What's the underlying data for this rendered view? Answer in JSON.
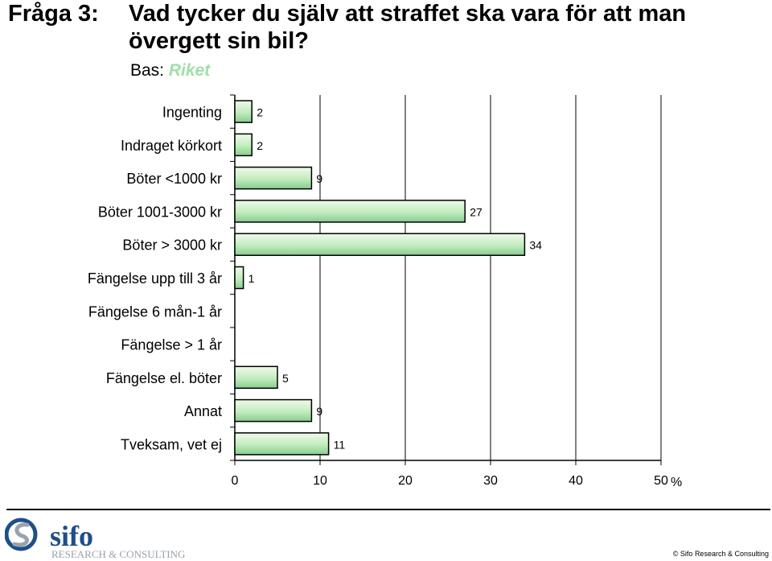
{
  "header": {
    "question_number": "Fråga 3:",
    "question_text": "Vad tycker du själv att straffet ska vara för att man övergett sin bil?",
    "base_label": "Bas:",
    "base_value": "Riket"
  },
  "chart_data": {
    "type": "bar",
    "orientation": "horizontal",
    "categories": [
      "Ingenting",
      "Indraget körkort",
      "Böter <1000 kr",
      "Böter 1001-3000 kr",
      "Böter > 3000 kr",
      "Fängelse upp till 3 år",
      "Fängelse 6 mån-1 år",
      "Fängelse > 1 år",
      "Fängelse el. böter",
      "Annat",
      "Tveksam, vet ej"
    ],
    "values": [
      2,
      2,
      9,
      27,
      34,
      1,
      null,
      null,
      5,
      9,
      11
    ],
    "value_labels": [
      "2",
      "2",
      "9",
      "27",
      "34",
      "1",
      "",
      "",
      "5",
      "9",
      "11"
    ],
    "x_ticks": [
      "0",
      "10",
      "20",
      "30",
      "40",
      "50"
    ],
    "xlim": [
      0,
      50
    ],
    "unit": "%",
    "gridlines": true,
    "bar_color": "#b9eab5"
  },
  "footer": {
    "brand": "sifo",
    "brand_subtitle": "RESEARCH & CONSULTING",
    "copyright": "© Sifo Research & Consulting"
  },
  "colors": {
    "bar_fill_light": "#e6f8e1",
    "bar_fill_dark": "#7fc98a",
    "base_value": "#9fdfa6",
    "logo_blue": "#1e4f8a",
    "logo_gray": "#9aa2ab"
  }
}
